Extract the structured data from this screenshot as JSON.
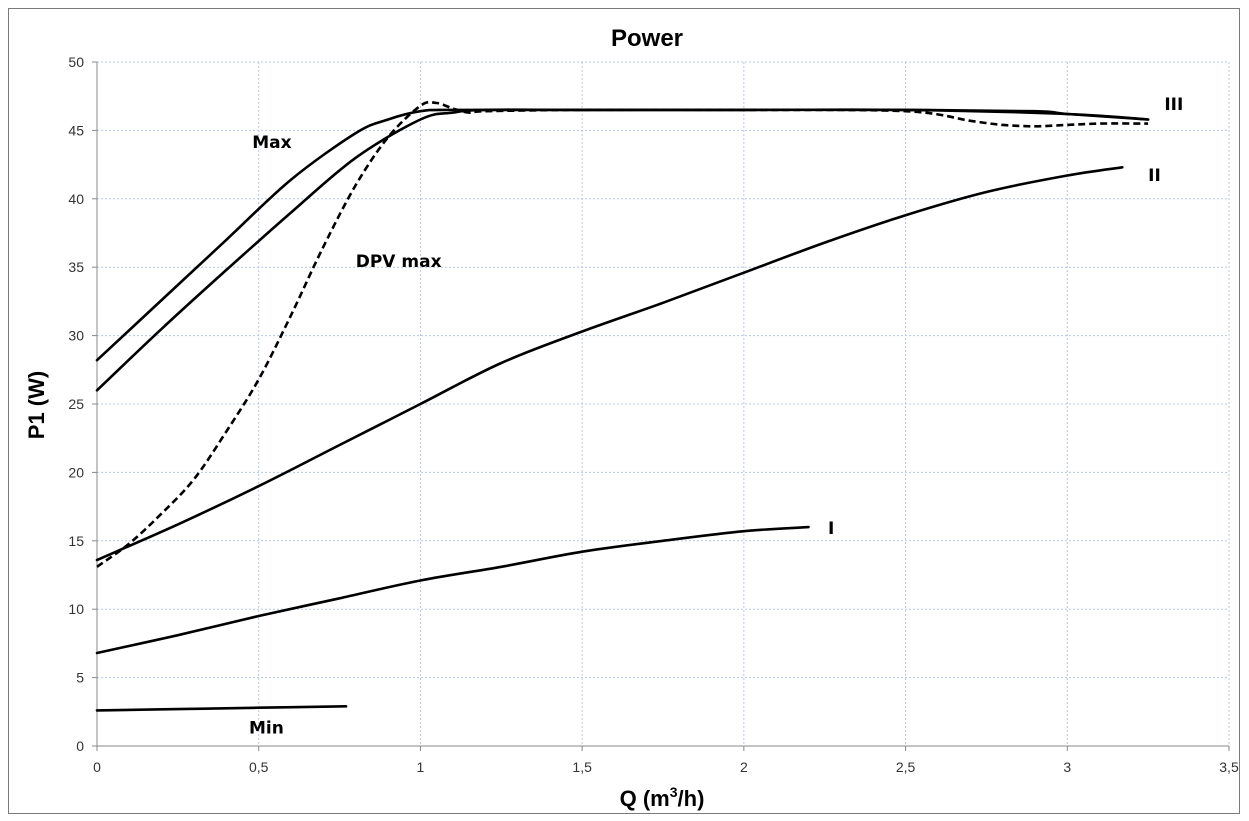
{
  "chart_data": {
    "type": "line",
    "title": "Power",
    "xlabel_main": "Q (m",
    "xlabel_sup": "3",
    "xlabel_tail": "/h)",
    "ylabel": "P1 (W)",
    "xlim": [
      0,
      3.5
    ],
    "ylim": [
      0,
      50
    ],
    "grid": true,
    "x_ticks": [
      "0",
      "0,5",
      "1",
      "1,5",
      "2",
      "2,5",
      "3",
      "3,5"
    ],
    "y_ticks": [
      "0",
      "5",
      "10",
      "15",
      "20",
      "25",
      "30",
      "35",
      "40",
      "45",
      "50"
    ],
    "series": [
      {
        "name": "Max",
        "style": "solid",
        "x": [
          0,
          0.2,
          0.4,
          0.6,
          0.8,
          0.9,
          1.0,
          1.1,
          1.5,
          2.0,
          2.5,
          2.9,
          3.0,
          3.25
        ],
        "y": [
          28.2,
          32.6,
          37.0,
          41.4,
          44.8,
          45.8,
          46.4,
          46.5,
          46.5,
          46.5,
          46.5,
          46.4,
          46.2,
          45.8
        ]
      },
      {
        "name": "III",
        "style": "solid",
        "x": [
          0,
          0.2,
          0.4,
          0.6,
          0.8,
          1.0,
          1.1,
          1.2,
          1.5,
          2.0,
          2.5,
          3.0,
          3.25
        ],
        "y": [
          26.0,
          30.5,
          34.8,
          39.0,
          43.0,
          45.8,
          46.3,
          46.5,
          46.5,
          46.5,
          46.5,
          46.2,
          45.8
        ]
      },
      {
        "name": "DPV max",
        "style": "dashed",
        "x": [
          0,
          0.1,
          0.2,
          0.3,
          0.4,
          0.5,
          0.6,
          0.7,
          0.8,
          0.9,
          1.0,
          1.05,
          1.1,
          1.15,
          1.2,
          1.5,
          2.0,
          2.5,
          2.7,
          2.8,
          2.9,
          3.0,
          3.1,
          3.25
        ],
        "y": [
          13.1,
          14.8,
          17.0,
          19.5,
          23.0,
          26.8,
          31.5,
          36.5,
          41.0,
          44.5,
          46.8,
          47.0,
          46.6,
          46.3,
          46.4,
          46.5,
          46.5,
          46.4,
          45.7,
          45.4,
          45.3,
          45.4,
          45.5,
          45.5
        ]
      },
      {
        "name": "II",
        "style": "solid",
        "x": [
          0,
          0.25,
          0.5,
          0.75,
          1.0,
          1.25,
          1.5,
          1.75,
          2.0,
          2.25,
          2.5,
          2.75,
          3.0,
          3.17
        ],
        "y": [
          13.6,
          16.2,
          19.0,
          22.0,
          25.0,
          28.0,
          30.3,
          32.4,
          34.6,
          36.8,
          38.8,
          40.5,
          41.7,
          42.3
        ]
      },
      {
        "name": "I",
        "style": "solid",
        "x": [
          0,
          0.25,
          0.5,
          0.75,
          1.0,
          1.25,
          1.5,
          1.75,
          2.0,
          2.2
        ],
        "y": [
          6.8,
          8.1,
          9.5,
          10.8,
          12.1,
          13.1,
          14.2,
          15.0,
          15.7,
          16.0
        ]
      },
      {
        "name": "Min",
        "style": "solid",
        "x": [
          0,
          0.25,
          0.5,
          0.77
        ],
        "y": [
          2.6,
          2.7,
          2.8,
          2.9
        ]
      }
    ],
    "annotations": [
      {
        "text": "Max",
        "x": 0.48,
        "y": 43.7
      },
      {
        "text": "DPV max",
        "x": 0.8,
        "y": 35.0
      },
      {
        "text": "III",
        "x": 3.3,
        "y": 46.5
      },
      {
        "text": "II",
        "x": 3.25,
        "y": 41.3
      },
      {
        "text": "I",
        "x": 2.26,
        "y": 15.5
      },
      {
        "text": "Min",
        "x": 0.47,
        "y": 0.9
      }
    ],
    "colors": {
      "line": "#000000",
      "grid": "#b8c8e0",
      "axis": "#888888",
      "tick_text": "#333333"
    }
  }
}
